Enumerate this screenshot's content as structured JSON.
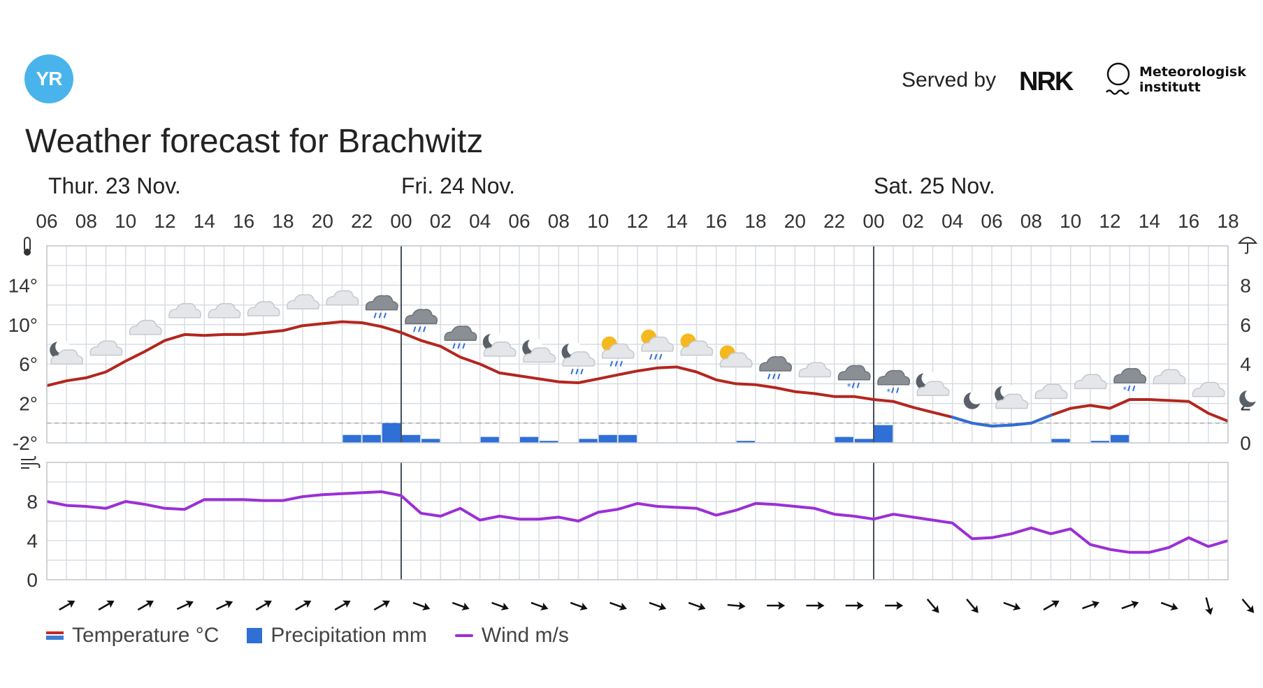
{
  "header": {
    "logo_text": "YR",
    "served_by": "Served by",
    "nrk_logo": "NRK",
    "met_name_line1": "Meteorologisk",
    "met_name_line2": "institutt",
    "title": "Weather forecast for Brachwitz"
  },
  "days": [
    "Thur. 23 Nov.",
    "Fri. 24 Nov.",
    "Sat. 25 Nov."
  ],
  "hours": [
    "06",
    "08",
    "10",
    "12",
    "14",
    "16",
    "18",
    "20",
    "22",
    "00",
    "02",
    "04",
    "06",
    "08",
    "10",
    "12",
    "14",
    "16",
    "18",
    "20",
    "22",
    "00",
    "02",
    "04",
    "06",
    "08",
    "10",
    "12",
    "14",
    "16",
    "18"
  ],
  "legend": {
    "temperature": "Temperature °C",
    "precipitation": "Precipitation mm",
    "wind": "Wind m/s"
  },
  "colors": {
    "temperature": "#b3261e",
    "below_zero": "#2f6fd6",
    "precipitation": "#2f6fd6",
    "wind": "#9b2fd6",
    "grid": "#d8dde3"
  },
  "icons": {
    "thermometer": "thermometer-icon",
    "umbrella": "umbrella-icon",
    "wind": "wind-icon"
  },
  "chart_data": {
    "type": "line",
    "x_hours_from_thu_06": [
      0,
      1,
      2,
      3,
      4,
      5,
      6,
      7,
      8,
      9,
      10,
      11,
      12,
      13,
      14,
      15,
      16,
      17,
      18,
      19,
      20,
      21,
      22,
      23,
      24,
      25,
      26,
      27,
      28,
      29,
      30,
      31,
      32,
      33,
      34,
      35,
      36,
      37,
      38,
      39,
      40,
      41,
      42,
      43,
      44,
      45,
      46,
      47,
      48,
      49,
      50,
      51,
      52,
      53,
      54,
      55,
      56,
      57,
      58,
      59,
      60
    ],
    "temperature": {
      "name": "Temperature °C",
      "y_ticks": [
        "-2°",
        "2°",
        "6°",
        "10°",
        "14°"
      ],
      "ylim": [
        -2,
        18
      ],
      "values": [
        3.8,
        4.3,
        4.6,
        5.2,
        6.3,
        7.3,
        8.4,
        9.0,
        8.9,
        9.0,
        9.0,
        9.2,
        9.4,
        9.9,
        10.1,
        10.3,
        10.2,
        9.8,
        9.2,
        8.4,
        7.8,
        6.7,
        6.0,
        5.1,
        4.8,
        4.5,
        4.2,
        4.1,
        4.5,
        4.9,
        5.3,
        5.6,
        5.7,
        5.2,
        4.4,
        4.0,
        3.9,
        3.6,
        3.2,
        3.0,
        2.7,
        2.7,
        2.4,
        2.2,
        1.6,
        1.1,
        0.6,
        0.0,
        -0.3,
        -0.2,
        0.0,
        0.8,
        1.5,
        1.8,
        1.5,
        2.4,
        2.4,
        2.3,
        2.2,
        1.0,
        0.2
      ]
    },
    "precipitation": {
      "name": "Precipitation mm",
      "y_ticks": [
        "0",
        "2",
        "4",
        "6",
        "8"
      ],
      "ylim": [
        0,
        10
      ],
      "values": [
        0,
        0,
        0,
        0,
        0,
        0,
        0,
        0,
        0,
        0,
        0,
        0,
        0,
        0,
        0,
        0.4,
        0.4,
        1.0,
        0.4,
        0.2,
        0,
        0,
        0.3,
        0,
        0.3,
        0.1,
        0,
        0.2,
        0.4,
        0.4,
        0,
        0,
        0,
        0,
        0,
        0.1,
        0,
        0,
        0,
        0,
        0.3,
        0.2,
        0.9,
        0,
        0,
        0,
        0,
        0,
        0,
        0,
        0,
        0.2,
        0,
        0.1,
        0.4,
        0,
        0,
        0,
        0,
        0,
        0
      ]
    },
    "wind": {
      "name": "Wind m/s",
      "y_ticks": [
        "0",
        "4",
        "8"
      ],
      "ylim": [
        0,
        12
      ],
      "values": [
        8.0,
        7.6,
        7.5,
        7.3,
        8.0,
        7.7,
        7.3,
        7.2,
        8.2,
        8.2,
        8.2,
        8.1,
        8.1,
        8.5,
        8.7,
        8.8,
        8.9,
        9.0,
        8.6,
        6.8,
        6.5,
        7.3,
        6.1,
        6.5,
        6.2,
        6.2,
        6.4,
        6.0,
        6.9,
        7.2,
        7.8,
        7.5,
        7.4,
        7.3,
        6.6,
        7.1,
        7.8,
        7.7,
        7.5,
        7.3,
        6.7,
        6.5,
        6.2,
        6.7,
        6.4,
        6.1,
        5.8,
        4.2,
        4.3,
        4.7,
        5.3,
        4.7,
        5.2,
        3.6,
        3.1,
        2.8,
        2.8,
        3.3,
        4.3,
        3.4,
        4.0
      ]
    },
    "weather_symbols": [
      "partly-cloudy-night",
      "cloudy",
      "cloudy",
      "cloudy",
      "cloudy",
      "cloudy",
      "cloudy",
      "cloudy",
      "rain",
      "rain",
      "rain",
      "partly-cloudy-night",
      "partly-cloudy-night",
      "partly-cloudy-night-rain",
      "partly-cloudy-day-rain",
      "partly-cloudy-day-rain",
      "partly-cloudy-day",
      "partly-cloudy-day",
      "cloudy-rain",
      "cloudy",
      "sleet",
      "sleet",
      "partly-cloudy-night",
      "clear-night",
      "partly-cloudy-night",
      "cloudy",
      "cloudy",
      "sleet",
      "cloudy",
      "cloudy",
      "clear-night"
    ],
    "wind_directions_deg": [
      60,
      60,
      60,
      65,
      65,
      60,
      60,
      60,
      60,
      110,
      110,
      110,
      110,
      110,
      110,
      110,
      110,
      95,
      90,
      90,
      90,
      90,
      140,
      140,
      110,
      60,
      70,
      70,
      110,
      165,
      140
    ]
  }
}
